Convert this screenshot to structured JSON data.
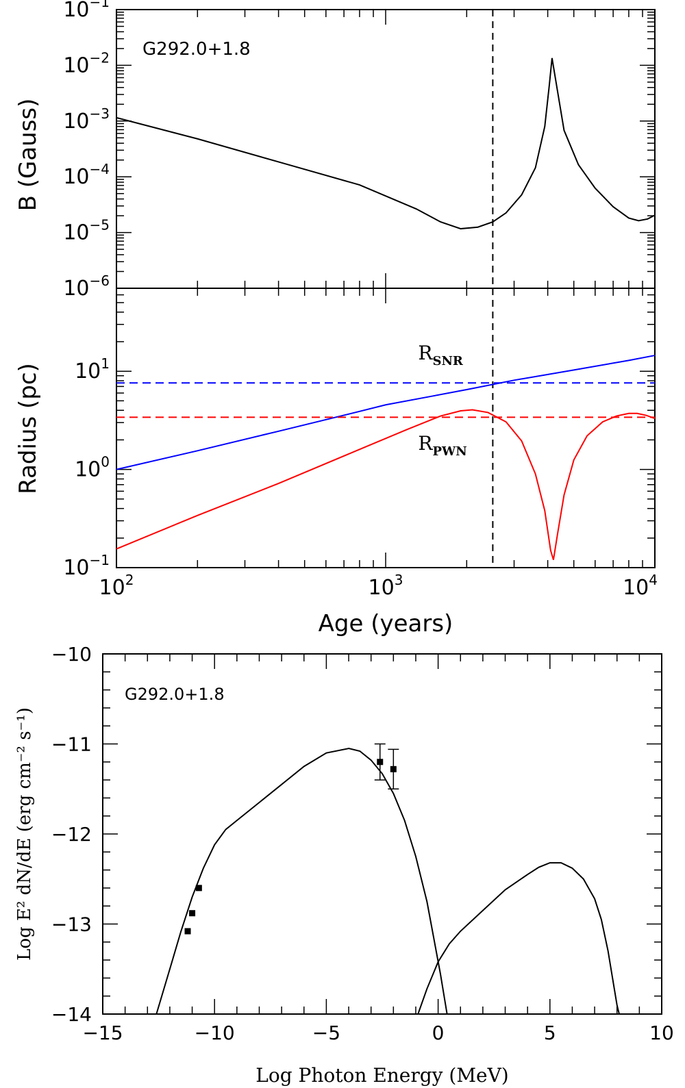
{
  "chart_data": [
    {
      "panel": "top",
      "type": "line",
      "annotation": "G292.0+1.8",
      "ylabel": "B (Gauss)",
      "xscale": "log",
      "yscale": "log",
      "xlim": [
        100,
        10000
      ],
      "ylim": [
        1e-06,
        0.1
      ],
      "ytick_labels": [
        {
          "value": 1e-06,
          "base": "10",
          "exp": "−6"
        },
        {
          "value": 1e-05,
          "base": "10",
          "exp": "−5"
        },
        {
          "value": 0.0001,
          "base": "10",
          "exp": "−4"
        },
        {
          "value": 0.001,
          "base": "10",
          "exp": "−3"
        },
        {
          "value": 0.01,
          "base": "10",
          "exp": "−2"
        },
        {
          "value": 0.1,
          "base": "10",
          "exp": "−1"
        }
      ],
      "vline": {
        "x": 2500,
        "style": "dashed",
        "color": "#000000"
      },
      "series": [
        {
          "name": "B field",
          "color": "#000000",
          "x": [
            100,
            200,
            400,
            800,
            1300,
            1600,
            1900,
            2200,
            2500,
            2800,
            3200,
            3600,
            3900,
            4050,
            4150,
            4300,
            4600,
            5200,
            6000,
            7000,
            8000,
            8700,
            9400,
            10000
          ],
          "y": [
            0.00115,
            0.00048,
            0.000185,
            7.15e-05,
            2.65e-05,
            1.55e-05,
            1.17e-05,
            1.25e-05,
            1.55e-05,
            2.25e-05,
            4.75e-05,
            0.000145,
            0.0008,
            0.0042,
            0.0135,
            0.0048,
            0.00068,
            0.000165,
            6.25e-05,
            2.9e-05,
            1.82e-05,
            1.63e-05,
            1.75e-05,
            2.05e-05
          ]
        }
      ]
    },
    {
      "panel": "middle",
      "type": "line",
      "xlabel": "Age (years)",
      "ylabel": "Radius (pc)",
      "xscale": "log",
      "yscale": "log",
      "xlim": [
        100,
        10000
      ],
      "ylim": [
        0.1,
        70
      ],
      "xtick_labels": [
        {
          "value": 100,
          "base": "10",
          "exp": "2"
        },
        {
          "value": 1000,
          "base": "10",
          "exp": "3"
        },
        {
          "value": 10000,
          "base": "10",
          "exp": "4"
        }
      ],
      "ytick_labels": [
        {
          "value": 0.1,
          "base": "10",
          "exp": "−1"
        },
        {
          "value": 1,
          "base": "10",
          "exp": "0"
        },
        {
          "value": 10,
          "base": "10",
          "exp": "1"
        }
      ],
      "vline": {
        "x": 2500,
        "style": "dashed",
        "color": "#000000"
      },
      "series_labels": [
        {
          "main": "R",
          "sub": "SNR",
          "color": "#0000ff",
          "x": 1320,
          "y": 13.2
        },
        {
          "main": "R",
          "sub": "PWN",
          "color": "#ff0000",
          "x": 1320,
          "y": 1.58
        }
      ],
      "series": [
        {
          "name": "R_SNR",
          "color": "#0000ff",
          "style": "solid",
          "x": [
            100,
            200,
            400,
            800,
            1000,
            1500,
            2000,
            3000,
            5000,
            8000,
            10000
          ],
          "y": [
            1.0,
            1.55,
            2.45,
            3.9,
            4.55,
            5.6,
            6.5,
            8.1,
            10.3,
            12.9,
            14.5
          ]
        },
        {
          "name": "R_SNR threshold",
          "color": "#0000ff",
          "style": "dashed",
          "x": [
            100,
            10000
          ],
          "y": [
            7.6,
            7.6
          ]
        },
        {
          "name": "R_PWN",
          "color": "#ff0000",
          "style": "solid",
          "x": [
            100,
            200,
            400,
            800,
            1200,
            1600,
            1900,
            2100,
            2400,
            2800,
            3200,
            3600,
            3900,
            4100,
            4200,
            4350,
            4600,
            5000,
            5600,
            6400,
            7200,
            8000,
            8600,
            9300,
            10000
          ],
          "y": [
            0.155,
            0.34,
            0.72,
            1.6,
            2.55,
            3.5,
            3.95,
            4.05,
            3.8,
            3.05,
            1.95,
            0.9,
            0.38,
            0.15,
            0.12,
            0.22,
            0.55,
            1.25,
            2.2,
            3.05,
            3.5,
            3.72,
            3.72,
            3.55,
            3.3
          ]
        },
        {
          "name": "R_PWN threshold",
          "color": "#ff0000",
          "style": "dashed",
          "x": [
            100,
            10000
          ],
          "y": [
            3.4,
            3.4
          ]
        }
      ]
    },
    {
      "panel": "bottom",
      "type": "line",
      "annotation": "G292.0+1.8",
      "xlabel": "Log Photon Energy (MeV)",
      "ylabel": "Log E² dN/dE (erg cm⁻² s⁻¹)",
      "xlim": [
        -15,
        10
      ],
      "ylim": [
        -14,
        -10
      ],
      "xticks": [
        -15,
        -10,
        -5,
        0,
        5,
        10
      ],
      "xtick_labels": [
        "−15",
        "−10",
        "−5",
        "0",
        "5",
        "10"
      ],
      "yticks": [
        -14,
        -13,
        -12,
        -11,
        -10
      ],
      "ytick_labels": [
        "−14",
        "−13",
        "−12",
        "−11",
        "−10"
      ],
      "series": [
        {
          "name": "synchrotron",
          "color": "#000000",
          "x": [
            -12.6,
            -12.0,
            -11.5,
            -11.0,
            -10.5,
            -10.0,
            -9.5,
            -9.0,
            -8.0,
            -7.0,
            -6.0,
            -5.0,
            -4.0,
            -3.5,
            -3.0,
            -2.5,
            -2.0,
            -1.5,
            -1.0,
            -0.5,
            -0.2,
            0.1,
            0.3,
            0.4
          ],
          "y": [
            -14.0,
            -13.5,
            -13.08,
            -12.7,
            -12.38,
            -12.12,
            -11.95,
            -11.85,
            -11.65,
            -11.45,
            -11.25,
            -11.1,
            -11.05,
            -11.08,
            -11.18,
            -11.33,
            -11.55,
            -11.85,
            -12.25,
            -12.75,
            -13.15,
            -13.55,
            -13.85,
            -14.0
          ]
        },
        {
          "name": "inverse Compton",
          "color": "#000000",
          "x": [
            -0.9,
            -0.5,
            0.0,
            0.5,
            1.0,
            2.0,
            3.0,
            4.0,
            4.5,
            5.0,
            5.5,
            6.0,
            6.5,
            7.0,
            7.3,
            7.6,
            7.8,
            8.0,
            8.1
          ],
          "y": [
            -14.0,
            -13.72,
            -13.42,
            -13.22,
            -13.08,
            -12.85,
            -12.62,
            -12.45,
            -12.37,
            -12.32,
            -12.32,
            -12.38,
            -12.5,
            -12.72,
            -12.95,
            -13.3,
            -13.6,
            -13.9,
            -14.0
          ]
        }
      ],
      "points": [
        {
          "x": -11.2,
          "y": -13.08,
          "err": 0
        },
        {
          "x": -11.0,
          "y": -12.88,
          "err": 0
        },
        {
          "x": -10.7,
          "y": -12.6,
          "err": 0
        },
        {
          "x": -2.6,
          "y": -11.2,
          "err": 0.2
        },
        {
          "x": -2.0,
          "y": -11.28,
          "err": 0.22
        }
      ]
    }
  ]
}
